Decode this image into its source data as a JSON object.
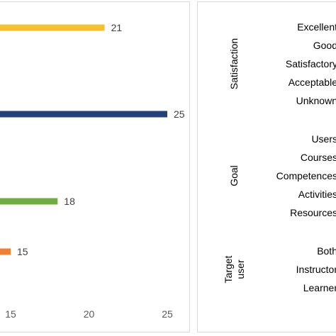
{
  "chart_data": [
    {
      "type": "bar",
      "orientation": "horizontal",
      "values": [
        21,
        25,
        18,
        15
      ],
      "bar_colors": [
        "#F6C12C",
        "#23417A",
        "#6FAE3E",
        "#F08030"
      ],
      "data_labels": [
        "21",
        "25",
        "18",
        "15"
      ],
      "x_ticks": [
        "15",
        "20",
        "25"
      ],
      "xlim": [
        10,
        25
      ],
      "grid": false,
      "legend": "none"
    },
    {
      "type": "table",
      "groups": [
        {
          "name": "Satisfaction",
          "items": [
            "Excellent",
            "Good",
            "Satisfactory",
            "Acceptable",
            "Unknown"
          ]
        },
        {
          "name": "Goal",
          "items": [
            "Users",
            "Courses",
            "Competences",
            "Activities",
            "Resources"
          ]
        },
        {
          "name": "Target user",
          "name_lines": [
            "Target",
            "user"
          ],
          "items": [
            "Both",
            "Instructor",
            "Learner"
          ]
        }
      ]
    }
  ]
}
